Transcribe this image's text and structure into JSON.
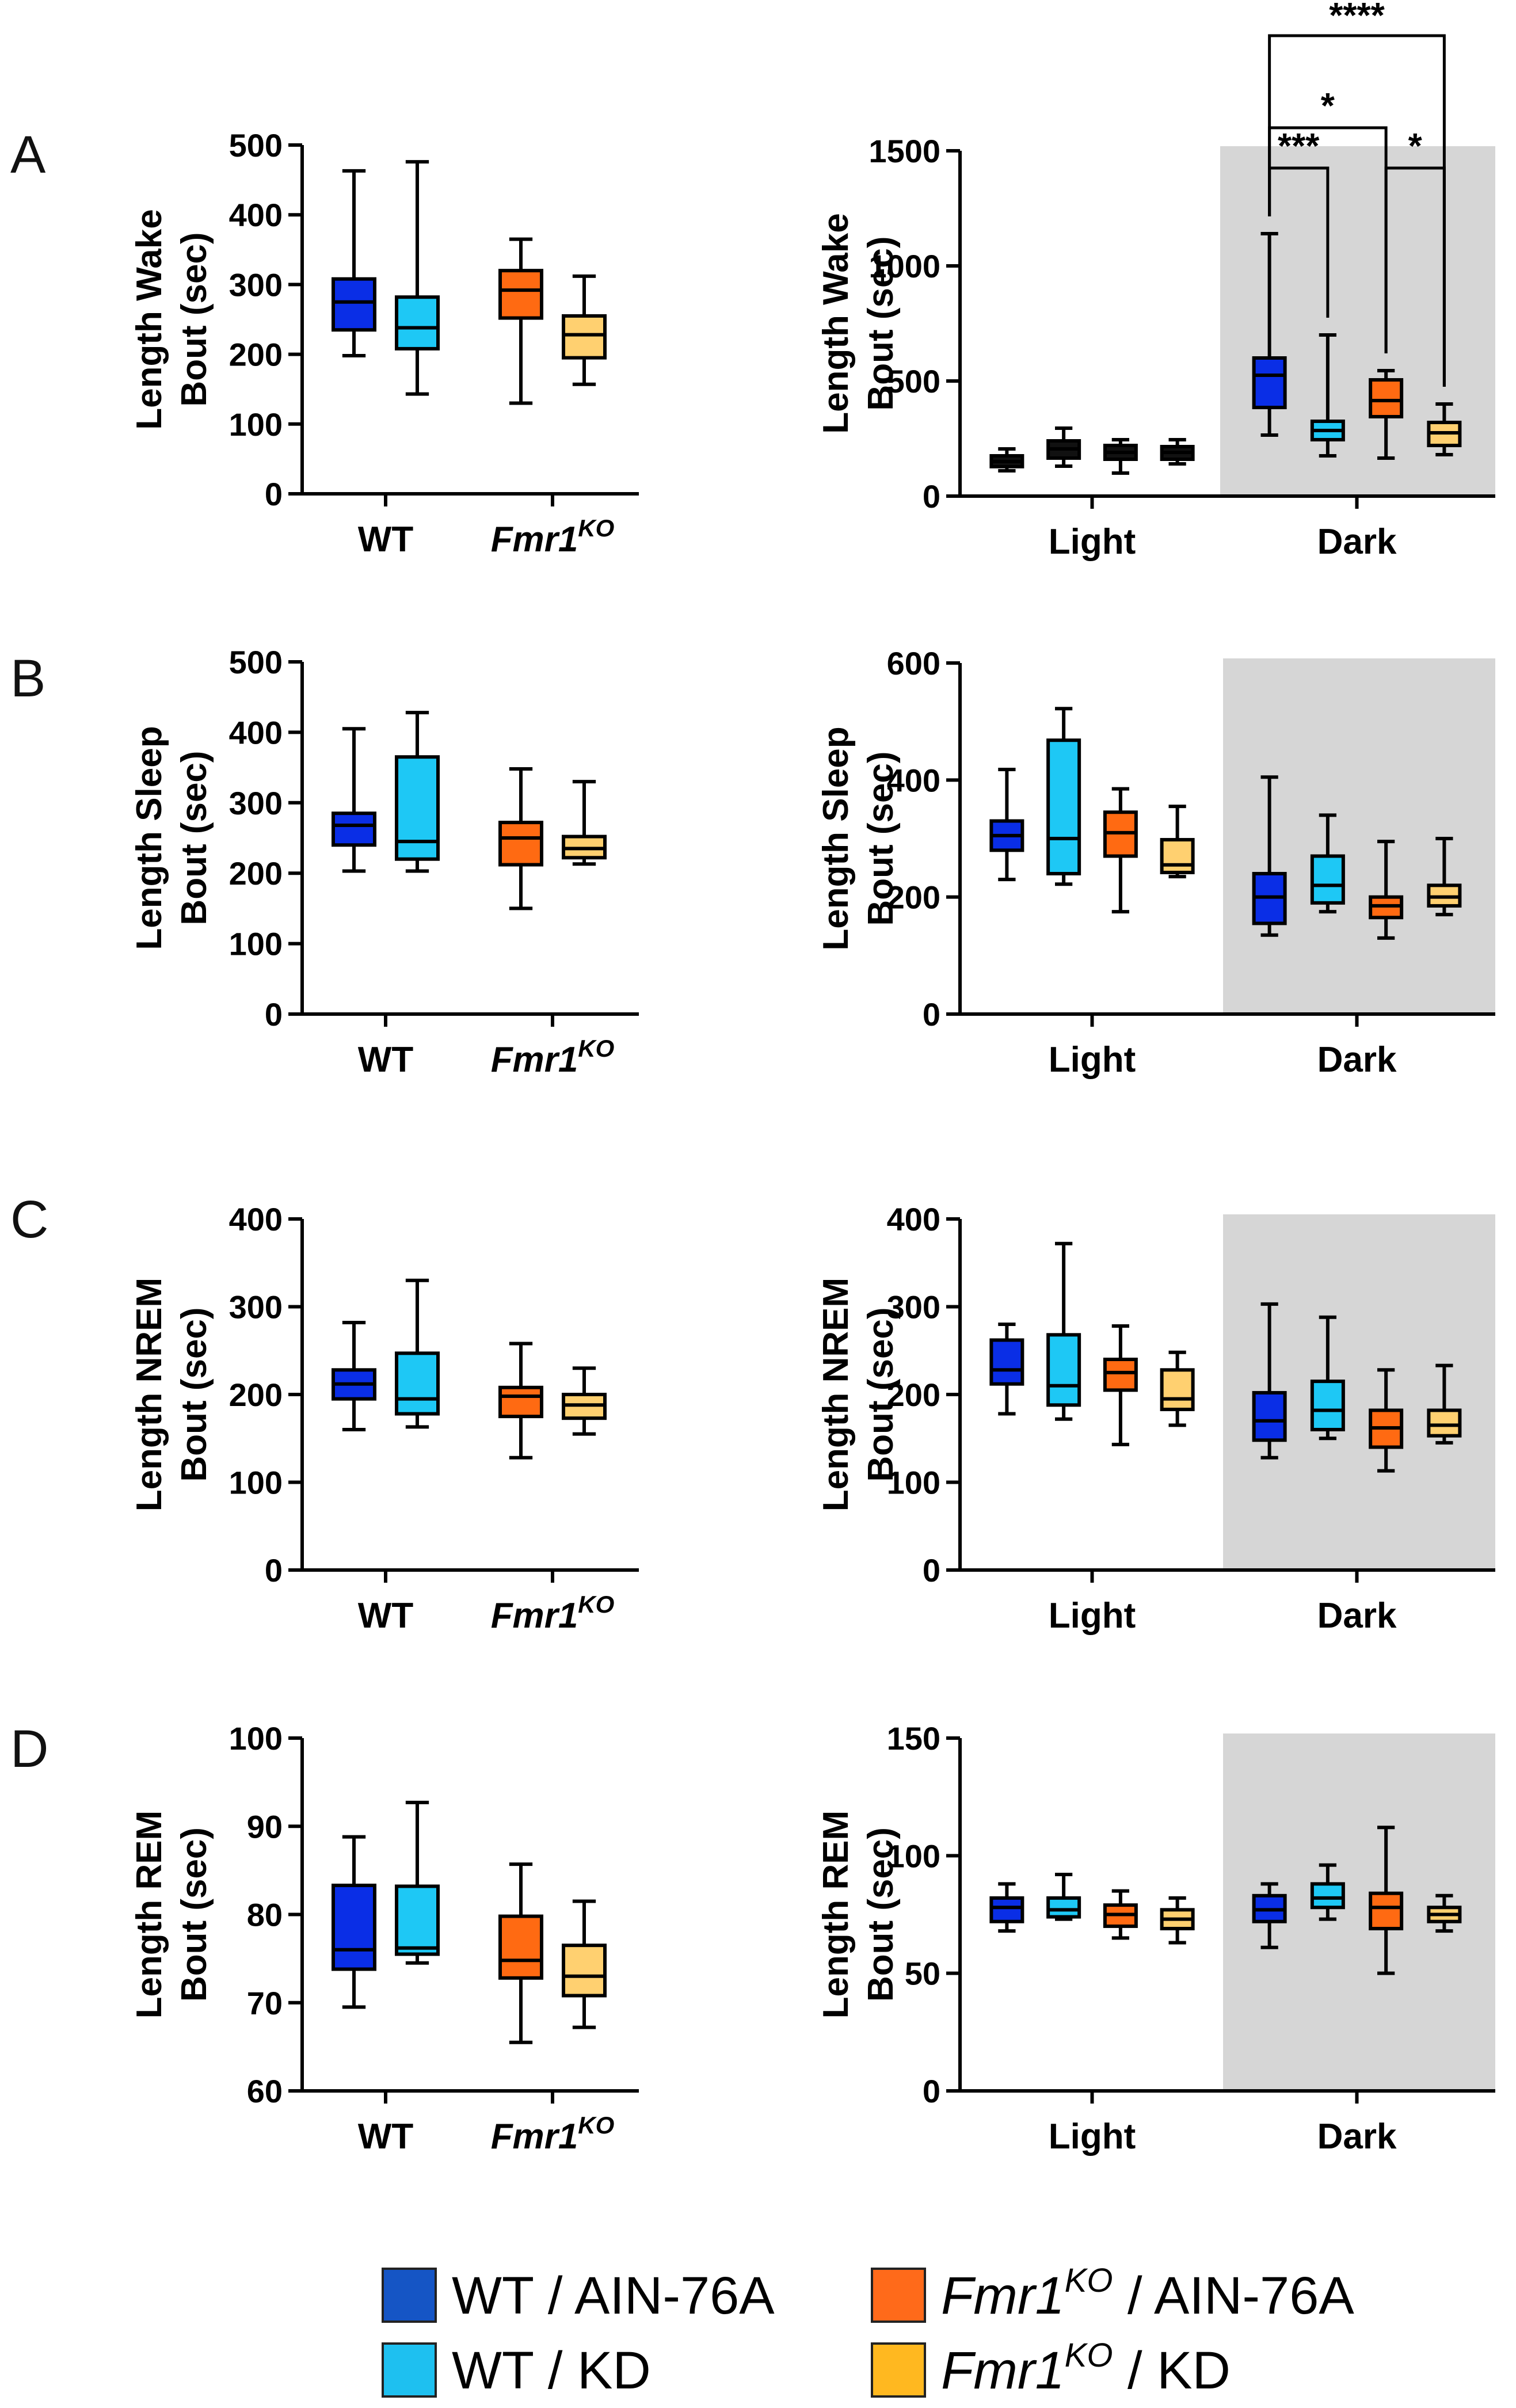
{
  "figure": {
    "panel_letters": [
      "A",
      "B",
      "C",
      "D"
    ],
    "legend": [
      {
        "label": "WT / AIN-76A",
        "color": "#1555c5"
      },
      {
        "label_italic": "Fmr1",
        "label_sup": "KO",
        "label_rest": " / AIN-76A",
        "color": "#ff6a1a"
      },
      {
        "label": "WT / KD",
        "color": "#1ec0f0"
      },
      {
        "label_italic": "Fmr1",
        "label_sup": "KO",
        "label_rest": " / KD",
        "color": "#ffb820"
      }
    ],
    "colors": {
      "wt_ain": "#0a2ee6",
      "wt_kd": "#1ec8f5",
      "ko_ain": "#ff6a12",
      "ko_kd": "#ffd070",
      "light_box": "#111111",
      "dark_shade": "#d6d6d6"
    }
  },
  "chart_data": [
    {
      "id": "A-left",
      "type": "box",
      "panel": "A",
      "ylabel_line1": "Length Wake",
      "ylabel_line2": "Bout (sec)",
      "ylim": [
        0,
        500
      ],
      "yticks": [
        "0",
        "100",
        "200",
        "300",
        "400",
        "500"
      ],
      "groups": [
        "WT",
        "Fmr1KO"
      ],
      "boxes": [
        {
          "group": "WT",
          "series": "WT / AIN-76A",
          "min": 198,
          "q1": 235,
          "median": 275,
          "q3": 308,
          "max": 463
        },
        {
          "group": "WT",
          "series": "WT / KD",
          "min": 143,
          "q1": 208,
          "median": 238,
          "q3": 282,
          "max": 476
        },
        {
          "group": "Fmr1KO",
          "series": "Fmr1KO / AIN-76A",
          "min": 130,
          "q1": 252,
          "median": 292,
          "q3": 320,
          "max": 365
        },
        {
          "group": "Fmr1KO",
          "series": "Fmr1KO / KD",
          "min": 157,
          "q1": 195,
          "median": 228,
          "q3": 255,
          "max": 312
        }
      ]
    },
    {
      "id": "A-right",
      "type": "box",
      "panel": "A",
      "ylabel_line1": "Length Wake",
      "ylabel_line2": "Bout (sec)",
      "ylim": [
        0,
        1500
      ],
      "yticks": [
        "0",
        "500",
        "1000",
        "1500"
      ],
      "groups": [
        "Light",
        "Dark"
      ],
      "shaded_group": "Dark",
      "boxes": [
        {
          "group": "Light",
          "series": "WT / AIN-76A",
          "min": 110,
          "q1": 128,
          "median": 150,
          "q3": 175,
          "max": 205
        },
        {
          "group": "Light",
          "series": "WT / KD",
          "min": 130,
          "q1": 165,
          "median": 205,
          "q3": 240,
          "max": 295
        },
        {
          "group": "Light",
          "series": "Fmr1KO / AIN-76A",
          "min": 100,
          "q1": 160,
          "median": 190,
          "q3": 220,
          "max": 245
        },
        {
          "group": "Light",
          "series": "Fmr1KO / KD",
          "min": 140,
          "q1": 160,
          "median": 190,
          "q3": 215,
          "max": 245
        },
        {
          "group": "Dark",
          "series": "WT / AIN-76A",
          "min": 265,
          "q1": 385,
          "median": 525,
          "q3": 600,
          "max": 1140
        },
        {
          "group": "Dark",
          "series": "WT / KD",
          "min": 175,
          "q1": 245,
          "median": 285,
          "q3": 325,
          "max": 700
        },
        {
          "group": "Dark",
          "series": "Fmr1KO / AIN-76A",
          "min": 165,
          "q1": 345,
          "median": 415,
          "q3": 505,
          "max": 545
        },
        {
          "group": "Dark",
          "series": "Fmr1KO / KD",
          "min": 180,
          "q1": 220,
          "median": 275,
          "q3": 320,
          "max": 400
        }
      ],
      "significance": [
        {
          "from": "Dark WT / AIN-76A",
          "to": "Dark Fmr1KO / KD",
          "label": "****"
        },
        {
          "from": "Dark WT / AIN-76A",
          "to": "Dark Fmr1KO / AIN-76A",
          "label": "*"
        },
        {
          "from": "Dark WT / AIN-76A",
          "to": "Dark WT / KD",
          "label": "***"
        },
        {
          "from": "Dark Fmr1KO / AIN-76A",
          "to": "Dark Fmr1KO / KD",
          "label": "*"
        }
      ]
    },
    {
      "id": "B-left",
      "type": "box",
      "panel": "B",
      "ylabel_line1": "Length Sleep",
      "ylabel_line2": "Bout (sec)",
      "ylim": [
        0,
        500
      ],
      "yticks": [
        "0",
        "100",
        "200",
        "300",
        "400",
        "500"
      ],
      "groups": [
        "WT",
        "Fmr1KO"
      ],
      "boxes": [
        {
          "group": "WT",
          "series": "WT / AIN-76A",
          "min": 203,
          "q1": 240,
          "median": 268,
          "q3": 285,
          "max": 405
        },
        {
          "group": "WT",
          "series": "WT / KD",
          "min": 203,
          "q1": 220,
          "median": 245,
          "q3": 365,
          "max": 428
        },
        {
          "group": "Fmr1KO",
          "series": "Fmr1KO / AIN-76A",
          "min": 150,
          "q1": 212,
          "median": 250,
          "q3": 272,
          "max": 348
        },
        {
          "group": "Fmr1KO",
          "series": "Fmr1KO / KD",
          "min": 213,
          "q1": 222,
          "median": 235,
          "q3": 252,
          "max": 330
        }
      ]
    },
    {
      "id": "B-right",
      "type": "box",
      "panel": "B",
      "ylabel_line1": "Length Sleep",
      "ylabel_line2": "Bout (sec)",
      "ylim": [
        0,
        600
      ],
      "yticks": [
        "0",
        "200",
        "400",
        "600"
      ],
      "groups": [
        "Light",
        "Dark"
      ],
      "shaded_group": "Dark",
      "boxes": [
        {
          "group": "Light",
          "series": "WT / AIN-76A",
          "min": 230,
          "q1": 280,
          "median": 305,
          "q3": 330,
          "max": 418
        },
        {
          "group": "Light",
          "series": "WT / KD",
          "min": 222,
          "q1": 240,
          "median": 300,
          "q3": 468,
          "max": 522
        },
        {
          "group": "Light",
          "series": "Fmr1KO / AIN-76A",
          "min": 175,
          "q1": 270,
          "median": 310,
          "q3": 345,
          "max": 385
        },
        {
          "group": "Light",
          "series": "Fmr1KO / KD",
          "min": 235,
          "q1": 242,
          "median": 255,
          "q3": 298,
          "max": 355
        },
        {
          "group": "Dark",
          "series": "WT / AIN-76A",
          "min": 135,
          "q1": 155,
          "median": 200,
          "q3": 240,
          "max": 405
        },
        {
          "group": "Dark",
          "series": "WT / KD",
          "min": 175,
          "q1": 190,
          "median": 220,
          "q3": 270,
          "max": 340
        },
        {
          "group": "Dark",
          "series": "Fmr1KO / AIN-76A",
          "min": 130,
          "q1": 165,
          "median": 185,
          "q3": 200,
          "max": 295
        },
        {
          "group": "Dark",
          "series": "Fmr1KO / KD",
          "min": 170,
          "q1": 185,
          "median": 200,
          "q3": 220,
          "max": 300
        }
      ]
    },
    {
      "id": "C-left",
      "type": "box",
      "panel": "C",
      "ylabel_line1": "Length NREM",
      "ylabel_line2": "Bout (sec)",
      "ylim": [
        0,
        400
      ],
      "yticks": [
        "0",
        "100",
        "200",
        "300",
        "400"
      ],
      "groups": [
        "WT",
        "Fmr1KO"
      ],
      "boxes": [
        {
          "group": "WT",
          "series": "WT / AIN-76A",
          "min": 160,
          "q1": 195,
          "median": 212,
          "q3": 228,
          "max": 282
        },
        {
          "group": "WT",
          "series": "WT / KD",
          "min": 163,
          "q1": 178,
          "median": 195,
          "q3": 247,
          "max": 330
        },
        {
          "group": "Fmr1KO",
          "series": "Fmr1KO / AIN-76A",
          "min": 128,
          "q1": 175,
          "median": 198,
          "q3": 208,
          "max": 258
        },
        {
          "group": "Fmr1KO",
          "series": "Fmr1KO / KD",
          "min": 155,
          "q1": 173,
          "median": 188,
          "q3": 200,
          "max": 230
        }
      ]
    },
    {
      "id": "C-right",
      "type": "box",
      "panel": "C",
      "ylabel_line1": "Length NREM",
      "ylabel_line2": "Bout (sec)",
      "ylim": [
        0,
        400
      ],
      "yticks": [
        "0",
        "100",
        "200",
        "300",
        "400"
      ],
      "groups": [
        "Light",
        "Dark"
      ],
      "shaded_group": "Dark",
      "boxes": [
        {
          "group": "Light",
          "series": "WT / AIN-76A",
          "min": 178,
          "q1": 212,
          "median": 228,
          "q3": 262,
          "max": 280
        },
        {
          "group": "Light",
          "series": "WT / KD",
          "min": 172,
          "q1": 188,
          "median": 210,
          "q3": 268,
          "max": 372
        },
        {
          "group": "Light",
          "series": "Fmr1KO / AIN-76A",
          "min": 143,
          "q1": 205,
          "median": 225,
          "q3": 240,
          "max": 278
        },
        {
          "group": "Light",
          "series": "Fmr1KO / KD",
          "min": 165,
          "q1": 183,
          "median": 195,
          "q3": 228,
          "max": 248
        },
        {
          "group": "Dark",
          "series": "WT / AIN-76A",
          "min": 128,
          "q1": 148,
          "median": 170,
          "q3": 202,
          "max": 303
        },
        {
          "group": "Dark",
          "series": "WT / KD",
          "min": 150,
          "q1": 160,
          "median": 182,
          "q3": 215,
          "max": 288
        },
        {
          "group": "Dark",
          "series": "Fmr1KO / AIN-76A",
          "min": 113,
          "q1": 140,
          "median": 162,
          "q3": 182,
          "max": 228
        },
        {
          "group": "Dark",
          "series": "Fmr1KO / KD",
          "min": 145,
          "q1": 153,
          "median": 165,
          "q3": 182,
          "max": 233
        }
      ]
    },
    {
      "id": "D-left",
      "type": "box",
      "panel": "D",
      "ylabel_line1": "Length REM",
      "ylabel_line2": "Bout (sec)",
      "ylim": [
        60,
        100
      ],
      "yticks": [
        "60",
        "70",
        "80",
        "90",
        "100"
      ],
      "groups": [
        "WT",
        "Fmr1KO"
      ],
      "boxes": [
        {
          "group": "WT",
          "series": "WT / AIN-76A",
          "min": 69.5,
          "q1": 73.8,
          "median": 76,
          "q3": 83.3,
          "max": 88.8
        },
        {
          "group": "WT",
          "series": "WT / KD",
          "min": 74.5,
          "q1": 75.5,
          "median": 76.2,
          "q3": 83.2,
          "max": 92.7
        },
        {
          "group": "Fmr1KO",
          "series": "Fmr1KO / AIN-76A",
          "min": 65.5,
          "q1": 72.8,
          "median": 74.8,
          "q3": 79.8,
          "max": 85.7
        },
        {
          "group": "Fmr1KO",
          "series": "Fmr1KO / KD",
          "min": 67.2,
          "q1": 70.8,
          "median": 73,
          "q3": 76.5,
          "max": 81.5
        }
      ]
    },
    {
      "id": "D-right",
      "type": "box",
      "panel": "D",
      "ylabel_line1": "Length REM",
      "ylabel_line2": "Bout (sec)",
      "ylim": [
        0,
        150
      ],
      "yticks": [
        "0",
        "50",
        "100",
        "150"
      ],
      "groups": [
        "Light",
        "Dark"
      ],
      "shaded_group": "Dark",
      "boxes": [
        {
          "group": "Light",
          "series": "WT / AIN-76A",
          "min": 68,
          "q1": 72,
          "median": 78,
          "q3": 82,
          "max": 88
        },
        {
          "group": "Light",
          "series": "WT / KD",
          "min": 73,
          "q1": 74,
          "median": 77,
          "q3": 82,
          "max": 92
        },
        {
          "group": "Light",
          "series": "Fmr1KO / AIN-76A",
          "min": 65,
          "q1": 70,
          "median": 75,
          "q3": 79,
          "max": 85
        },
        {
          "group": "Light",
          "series": "Fmr1KO / KD",
          "min": 63,
          "q1": 69,
          "median": 73,
          "q3": 77,
          "max": 82
        },
        {
          "group": "Dark",
          "series": "WT / AIN-76A",
          "min": 61,
          "q1": 72,
          "median": 77,
          "q3": 83,
          "max": 88
        },
        {
          "group": "Dark",
          "series": "WT / KD",
          "min": 73,
          "q1": 78,
          "median": 82,
          "q3": 88,
          "max": 96
        },
        {
          "group": "Dark",
          "series": "Fmr1KO / AIN-76A",
          "min": 50,
          "q1": 69,
          "median": 78,
          "q3": 84,
          "max": 112
        },
        {
          "group": "Dark",
          "series": "Fmr1KO / KD",
          "min": 68,
          "q1": 72,
          "median": 75,
          "q3": 78,
          "max": 83
        }
      ]
    }
  ]
}
